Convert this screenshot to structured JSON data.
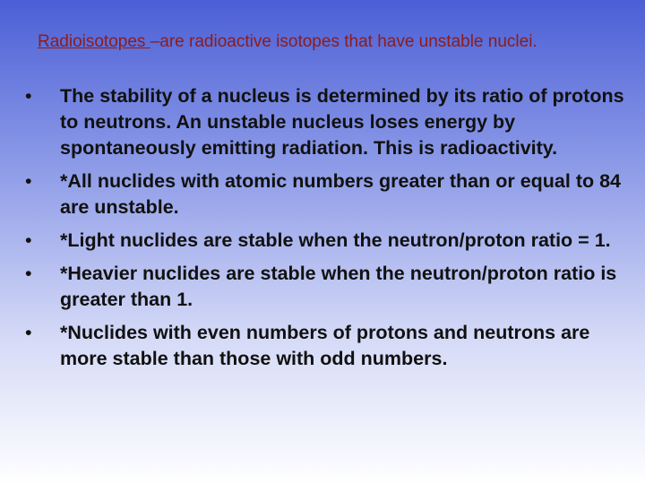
{
  "intro": {
    "term": "Radioisotopes ",
    "text": "–are radioactive isotopes that have unstable nuclei."
  },
  "bullets": [
    "The stability of a nucleus is determined by its ratio of protons to neutrons. An unstable nucleus loses energy by spontaneously emitting radiation. This is radioactivity.",
    "*All nuclides with atomic numbers greater than or equal to 84 are unstable.",
    "*Light nuclides are stable when the neutron/proton ratio = 1.",
    "*Heavier nuclides are stable when the neutron/proton ratio is greater than 1.",
    "*Nuclides with even numbers of protons and neutrons are more stable than those with odd numbers."
  ]
}
